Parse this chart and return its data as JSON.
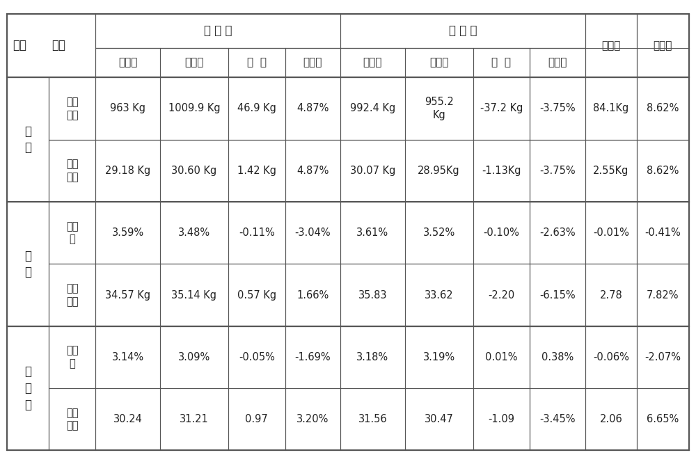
{
  "bg_color": "#ffffff",
  "border_color": "#555555",
  "text_color": "#222222",
  "font_size": 11,
  "header_font_size": 11,
  "col_header_rows": [
    [
      "参数",
      "",
      "试 验 组",
      "",
      "",
      "",
      "对 照 组",
      "",
      "",
      "",
      "相对值",
      "相对比"
    ],
    [
      "",
      "",
      "试验前",
      "试验后",
      "增  幅",
      "增幅比",
      "试验前",
      "试验后",
      "增  幅",
      "增幅比",
      "",
      ""
    ]
  ],
  "row_groups": [
    {
      "group_label": "奶\n量",
      "rows": [
        {
          "sub_label": "总产\n奶量",
          "data": [
            "963 Kg",
            "1009.9 Kg",
            "46.9 Kg",
            "4.87%",
            "992.4 Kg",
            "955.2\nKg",
            "-37.2 Kg",
            "-3.75%",
            "84.1Kg",
            "8.62%"
          ]
        },
        {
          "sub_label": "头均\n产量",
          "data": [
            "29.18 Kg",
            "30.60 Kg",
            "1.42 Kg",
            "4.87%",
            "30.07 Kg",
            "28.95Kg",
            "-1.13Kg",
            "-3.75%",
            "2.55Kg",
            "8.62%"
          ]
        }
      ]
    },
    {
      "group_label": "乳\n脂",
      "rows": [
        {
          "sub_label": "百分\n比",
          "data": [
            "3.59%",
            "3.48%",
            "-0.11%",
            "-3.04%",
            "3.61%",
            "3.52%",
            "-0.10%",
            "-2.63%",
            "-0.01%",
            "-0.41%"
          ]
        },
        {
          "sub_label": "绝对\n总值",
          "data": [
            "34.57 Kg",
            "35.14 Kg",
            "0.57 Kg",
            "1.66%",
            "35.83",
            "33.62",
            "-2.20",
            "-6.15%",
            "2.78",
            "7.82%"
          ]
        }
      ]
    },
    {
      "group_label": "乳\n蛋\n白",
      "rows": [
        {
          "sub_label": "百分\n比",
          "data": [
            "3.14%",
            "3.09%",
            "-0.05%",
            "-1.69%",
            "3.18%",
            "3.19%",
            "0.01%",
            "0.38%",
            "-0.06%",
            "-2.07%"
          ]
        },
        {
          "sub_label": "绝对\n总值",
          "data": [
            "30.24",
            "31.21",
            "0.97",
            "3.20%",
            "31.56",
            "30.47",
            "-1.09",
            "-3.45%",
            "2.06",
            "6.65%"
          ]
        }
      ]
    }
  ]
}
